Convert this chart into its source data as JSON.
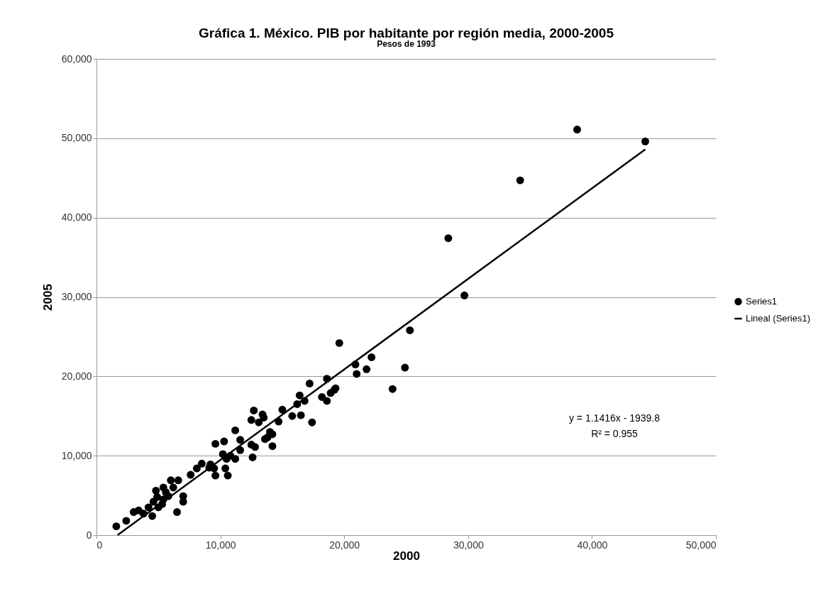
{
  "chart_data": {
    "type": "scatter",
    "title": "Gráfica 1. México. PIB por habitante por región media, 2000-2005",
    "subtitle": "Pesos de 1993",
    "xlabel": "2000",
    "ylabel": "2005",
    "xlim": [
      0,
      50000
    ],
    "xticks": [
      0,
      {
        "value": 10000,
        "label": "10,000"
      },
      {
        "value": 20000,
        "label": "20,000"
      },
      {
        "value": 30000,
        "label": "30,000"
      },
      {
        "value": 40000,
        "label": "40,000"
      },
      {
        "value": 50000,
        "label": "50,000"
      }
    ],
    "ylim": [
      0,
      60000
    ],
    "yticks": [
      0,
      {
        "value": 10000,
        "label": "10,000"
      },
      {
        "value": 20000,
        "label": "20,000"
      },
      {
        "value": 30000,
        "label": "30,000"
      },
      {
        "value": 40000,
        "label": "40,000"
      },
      {
        "value": 50000,
        "label": "50,000"
      },
      {
        "value": 60000,
        "label": "60,000"
      }
    ],
    "grid": "y",
    "legend": "right",
    "annotations": [
      "y = 1.1416x - 1939.8",
      "R² = 0.955"
    ],
    "series": [
      {
        "name": "Series1",
        "marker": "circle",
        "color": "#000000",
        "x": [
          38800,
          44300,
          34200,
          28400,
          29700,
          19600,
          25300,
          22200,
          20900,
          21800,
          21000,
          24900,
          23900,
          18600,
          17200,
          18200,
          18600,
          19200,
          18900,
          19300,
          16400,
          16800,
          16200,
          17400,
          16500,
          15800,
          15000,
          14700,
          12700,
          13400,
          12500,
          13100,
          13500,
          14000,
          13800,
          14200,
          14200,
          13600,
          11200,
          11600,
          12500,
          12800,
          12600,
          11600,
          9600,
          10300,
          10200,
          10800,
          11200,
          10500,
          8500,
          9200,
          1600,
          2400,
          3000,
          3400,
          3800,
          4200,
          4500,
          4600,
          4900,
          5000,
          5300,
          5400,
          5800,
          5600,
          6200,
          6500,
          7000,
          7000,
          6600,
          7600,
          8100,
          9100,
          9600,
          9500,
          10400,
          10600,
          6000,
          5400,
          4800
        ],
        "values": [
          51100,
          49600,
          44700,
          37400,
          30200,
          24200,
          25800,
          22400,
          21500,
          20900,
          20300,
          21100,
          18400,
          19700,
          19100,
          17400,
          16900,
          18300,
          17900,
          18500,
          17600,
          16900,
          16500,
          14200,
          15100,
          15000,
          15800,
          14300,
          15700,
          15200,
          14500,
          14200,
          14800,
          13000,
          12300,
          12700,
          11200,
          12100,
          13200,
          12000,
          11400,
          11100,
          9800,
          10700,
          11500,
          11800,
          10200,
          10000,
          9600,
          9600,
          9000,
          8900,
          1100,
          1800,
          2900,
          3100,
          2700,
          3500,
          2400,
          4200,
          4800,
          3500,
          3900,
          4500,
          4900,
          5400,
          6000,
          2900,
          4200,
          4900,
          6900,
          7600,
          8400,
          8500,
          7500,
          8400,
          8400,
          7500,
          6900,
          6000,
          5600
        ]
      },
      {
        "name": "Lineal (Series1)",
        "type": "line",
        "marker": "none",
        "color": "#000000",
        "x": [
          1700,
          44300
        ],
        "values": [
          0,
          48600
        ]
      }
    ]
  }
}
